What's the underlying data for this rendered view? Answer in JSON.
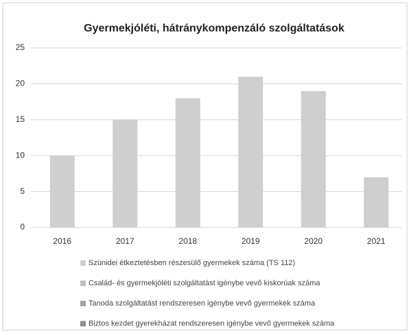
{
  "chart_data": {
    "type": "bar",
    "title": "Gyermekjóléti, hátránykompenzáló szolgáltatások",
    "categories": [
      "2016",
      "2017",
      "2018",
      "2019",
      "2020",
      "2021"
    ],
    "series": [
      {
        "name": "Szünidei étkeztetésben részesülő gyermekek száma (TS 112)",
        "color": "#cfcfcf",
        "values": [
          10,
          15,
          18,
          21,
          19,
          7
        ]
      },
      {
        "name": "Család- és gyermekjóléti szolgáltatást igénybe vevő kiskorúak száma",
        "color": "#bdbdbd",
        "values": [
          null,
          null,
          null,
          null,
          null,
          null
        ]
      },
      {
        "name": "Tanoda szolgáltatást rendszeresen igénybe vevő gyermekek száma",
        "color": "#a3a3a3",
        "values": [
          null,
          null,
          null,
          null,
          null,
          null
        ]
      },
      {
        "name": "Biztos kezdet gyerekházat rendszeresen igénybe vevő gyermekek száma",
        "color": "#8e8e8e",
        "values": [
          null,
          null,
          null,
          null,
          null,
          null
        ]
      }
    ],
    "ylim": [
      0,
      25
    ],
    "yticks": [
      0,
      5,
      10,
      15,
      20,
      25
    ],
    "grid": true
  }
}
